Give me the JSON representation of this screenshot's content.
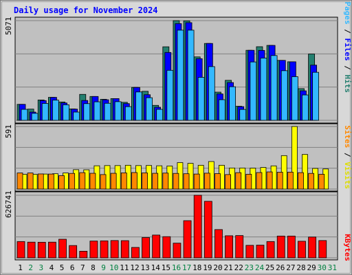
{
  "title": "Daily usage for November 2024",
  "colors": {
    "background": "#c0c0c0",
    "page_bg": "#ffffff",
    "hits": "#33b8ff",
    "files": "#0000ff",
    "pages": "#247f6f",
    "visits": "#ffff00",
    "sites": "#ff8800",
    "kbytes": "#ff0000",
    "title": "#0000ff",
    "weekend": "#008040",
    "weekday": "#000000"
  },
  "axes": {
    "top_max_label": "5071",
    "middle_max_label": "591",
    "bottom_max_label": "626741"
  },
  "legends": {
    "top": [
      {
        "label": "Pages",
        "color": "#33b8ff"
      },
      {
        "label": "Files",
        "color": "#0000ff"
      },
      {
        "label": "Hits",
        "color": "#247f6f"
      }
    ],
    "middle": [
      {
        "label": "Sites",
        "color": "#ff8800"
      },
      {
        "label": "Visits",
        "color": "#ffff00"
      }
    ],
    "bottom": [
      {
        "label": "KBytes",
        "color": "#ff0000"
      }
    ]
  },
  "chart_data": {
    "type": "bar",
    "title": "Daily usage for November 2024",
    "categories": [
      "1",
      "2",
      "3",
      "4",
      "5",
      "6",
      "7",
      "8",
      "9",
      "10",
      "11",
      "12",
      "13",
      "14",
      "15",
      "16",
      "17",
      "18",
      "19",
      "20",
      "21",
      "22",
      "23",
      "24",
      "25",
      "26",
      "27",
      "28",
      "29",
      "30",
      "31"
    ],
    "weekend_days": [
      2,
      3,
      9,
      10,
      16,
      17,
      23,
      24,
      30,
      31
    ],
    "panels": [
      {
        "name": "top",
        "ylim": [
          0,
          5071
        ],
        "series": [
          {
            "name": "Hits",
            "values": [
              812,
              570,
              1035,
              1168,
              933,
              580,
              1320,
              1213,
              1071,
              1105,
              916,
              1671,
              1476,
              760,
              3740,
              5071,
              5061,
              3226,
              3910,
              1433,
              2034,
              716,
              3561,
              3744,
              3811,
              3049,
              2977,
              1612,
              3373,
              0,
              0
            ]
          },
          {
            "name": "Files",
            "values": [
              812,
              419,
              1004,
              1168,
              883,
              570,
              1009,
              1213,
              1046,
              1105,
              850,
              1671,
              1303,
              664,
              3452,
              4919,
              4968,
              3135,
              3910,
              1342,
              1920,
              696,
              3561,
              3555,
              3811,
              3049,
              2977,
              1500,
              2807,
              0,
              0
            ]
          },
          {
            "name": "Pages",
            "values": [
              558,
              355,
              858,
              1027,
              791,
              419,
              848,
              941,
              866,
              948,
              696,
              1442,
              1151,
              558,
              2543,
              4586,
              4586,
              2186,
              2732,
              1049,
              1709,
              554,
              2968,
              3167,
              3295,
              2524,
              2220,
              1291,
              2442,
              0,
              0
            ]
          }
        ]
      },
      {
        "name": "middle",
        "ylim": [
          0,
          591
        ],
        "series": [
          {
            "name": "Visits",
            "values": [
              139,
              139,
              142,
              145,
              152,
              183,
              182,
              220,
              222,
              222,
              225,
              222,
              223,
              220,
              218,
              250,
              243,
              225,
              260,
              225,
              199,
              199,
              198,
              204,
              219,
              316,
              591,
              327,
              195,
              190,
              0
            ]
          },
          {
            "name": "Sites",
            "values": [
              152,
              152,
              143,
              142,
              127,
              148,
              155,
              149,
              137,
              149,
              153,
              156,
              153,
              149,
              151,
              148,
              145,
              142,
              150,
              146,
              137,
              155,
              140,
              156,
              162,
              159,
              160,
              155,
              148,
              140,
              0
            ]
          }
        ]
      },
      {
        "name": "bottom",
        "ylim": [
          0,
          626741
        ],
        "series": [
          {
            "name": "KBytes",
            "values": [
              163000,
              157000,
              156000,
              157000,
              186000,
              123000,
              66000,
              168000,
              170000,
              173000,
              172000,
              104000,
              203000,
              228000,
              212000,
              147000,
              372000,
              626741,
              566000,
              283000,
              221000,
              223000,
              125000,
              127000,
              163000,
              218000,
              218000,
              166000,
              208000,
              173000,
              0
            ]
          }
        ]
      }
    ]
  }
}
